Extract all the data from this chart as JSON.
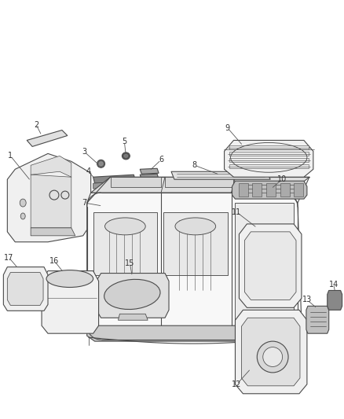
{
  "background_color": "#ffffff",
  "fig_width": 4.38,
  "fig_height": 5.33,
  "dpi": 100,
  "lc": "#4a4a4a",
  "lw": 0.8,
  "label_fontsize": 7,
  "label_color": "#333333"
}
